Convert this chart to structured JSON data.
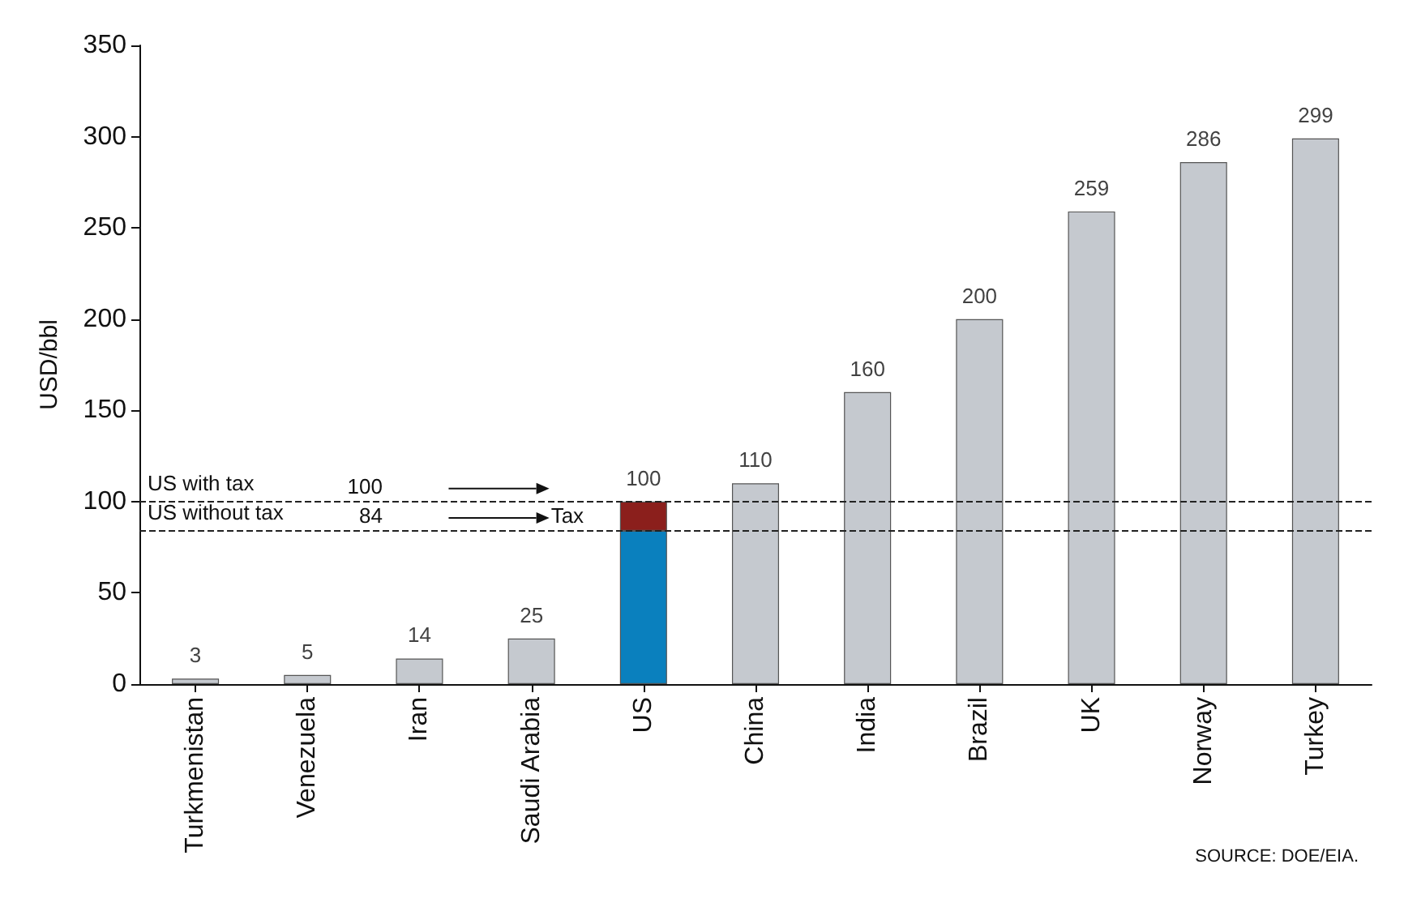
{
  "chart_data": {
    "type": "bar",
    "stacked": true,
    "ylabel": "USD/bbl",
    "categories": [
      "Turkmenistan",
      "Venezuela",
      "Iran",
      "Saudi Arabia",
      "US",
      "China",
      "India",
      "Brazil",
      "UK",
      "Norway",
      "Turkey"
    ],
    "series": [
      {
        "values": [
          3,
          5,
          14,
          25,
          84,
          110,
          160,
          200,
          259,
          286,
          299
        ],
        "colors": [
          "#c5c9cf",
          "#c5c9cf",
          "#c5c9cf",
          "#c5c9cf",
          "#0a80be",
          "#c5c9cf",
          "#c5c9cf",
          "#c5c9cf",
          "#c5c9cf",
          "#c5c9cf",
          "#c5c9cf"
        ]
      },
      {
        "values": [
          null,
          null,
          null,
          null,
          16,
          null,
          null,
          null,
          null,
          null,
          null
        ],
        "color": "#8b1f1c"
      }
    ],
    "totals": [
      "3",
      "5",
      "14",
      "25",
      "100",
      "110",
      "160",
      "200",
      "259",
      "286",
      "299"
    ],
    "ylim": [
      0,
      350
    ],
    "yticks": [
      0,
      50,
      100,
      150,
      200,
      250,
      300,
      350
    ],
    "grid": false,
    "ref_lines": [
      {
        "axis": "y",
        "value": 100,
        "label": "US with tax",
        "line_style": "dashed",
        "color": "#222222"
      },
      {
        "axis": "y",
        "value": 84,
        "label": "US without tax",
        "line_style": "dashed",
        "color": "#222222"
      }
    ],
    "annotations": [
      {
        "text": "100",
        "y": 100
      },
      {
        "text": "84",
        "y": 84
      },
      {
        "text": "Tax",
        "x": "US",
        "y": 84
      },
      "SOURCE: DOE/EIA."
    ]
  }
}
